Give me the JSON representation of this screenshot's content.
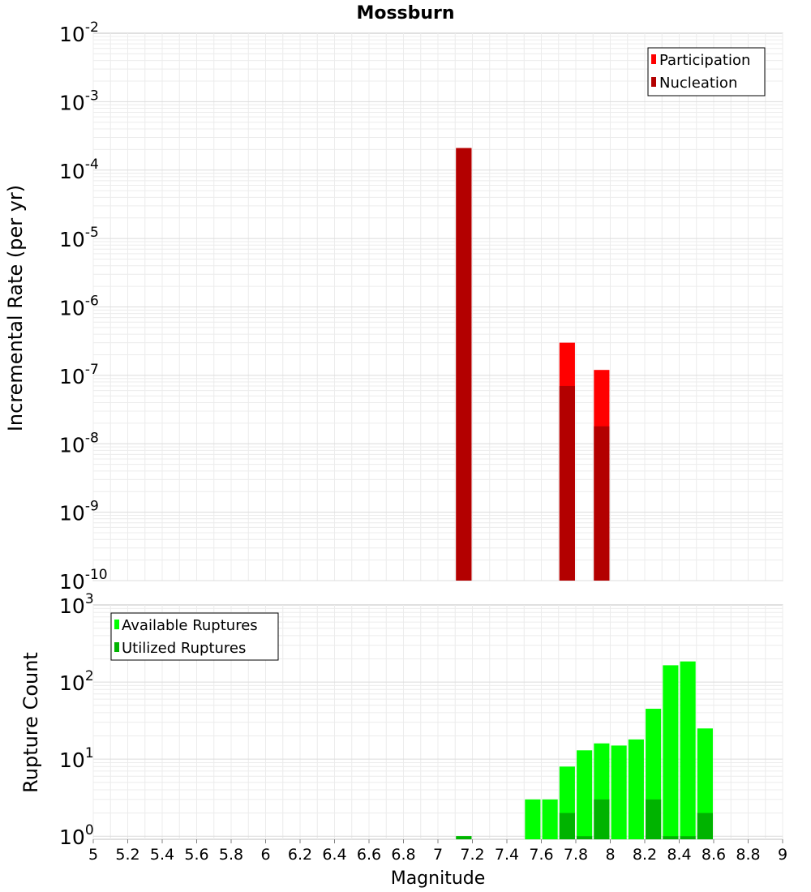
{
  "title": "Mossburn",
  "x_axis": {
    "label": "Magnitude",
    "ticks": [
      "5",
      "5.2",
      "5.4",
      "5.6",
      "5.8",
      "6",
      "6.2",
      "6.4",
      "6.6",
      "6.8",
      "7",
      "7.2",
      "7.4",
      "7.6",
      "7.8",
      "8",
      "8.2",
      "8.4",
      "8.6",
      "8.8",
      "9"
    ]
  },
  "chart_data": [
    {
      "type": "bar",
      "scale": "log",
      "title": "Mossburn",
      "ylabel": "Incremental Rate (per yr)",
      "xlabel": "",
      "xlim": [
        5,
        9
      ],
      "ylim_exponents": [
        -10,
        -2
      ],
      "y_ticks": [
        {
          "base": "10",
          "exp": "-2"
        },
        {
          "base": "10",
          "exp": "-3"
        },
        {
          "base": "10",
          "exp": "-4"
        },
        {
          "base": "10",
          "exp": "-5"
        },
        {
          "base": "10",
          "exp": "-6"
        },
        {
          "base": "10",
          "exp": "-7"
        },
        {
          "base": "10",
          "exp": "-8"
        },
        {
          "base": "10",
          "exp": "-9"
        },
        {
          "base": "10",
          "exp": "-10"
        }
      ],
      "bar_width": 0.09,
      "grid": true,
      "legend_position": "top-right",
      "series": [
        {
          "name": "Participation",
          "color": "#ff0000",
          "x": [
            7.15,
            7.75,
            7.95
          ],
          "values": [
            0.00021,
            3e-07,
            1.2e-07
          ]
        },
        {
          "name": "Nucleation",
          "color": "#b30000",
          "x": [
            7.15,
            7.75,
            7.95
          ],
          "values": [
            0.00021,
            7e-08,
            1.8e-08
          ]
        }
      ]
    },
    {
      "type": "bar",
      "scale": "log",
      "ylabel": "Rupture Count",
      "xlabel": "Magnitude",
      "xlim": [
        5,
        9
      ],
      "ylim_exponents": [
        -0.04,
        3
      ],
      "y_ticks": [
        {
          "base": "10",
          "exp": "3"
        },
        {
          "base": "10",
          "exp": "2"
        },
        {
          "base": "10",
          "exp": "1"
        },
        {
          "base": "10",
          "exp": "0"
        }
      ],
      "bar_width": 0.09,
      "grid": true,
      "legend_position": "top-left",
      "series": [
        {
          "name": "Available Ruptures",
          "color": "#00ff00",
          "x": [
            7.15,
            7.55,
            7.65,
            7.75,
            7.85,
            7.95,
            8.05,
            8.15,
            8.25,
            8.35,
            8.45,
            8.55
          ],
          "values": [
            1,
            3,
            3,
            8,
            13,
            16,
            15,
            18,
            45,
            165,
            185,
            25
          ]
        },
        {
          "name": "Utilized Ruptures",
          "color": "#00b300",
          "x": [
            7.15,
            7.75,
            7.85,
            7.95,
            8.25,
            8.35,
            8.45,
            8.55
          ],
          "values": [
            1,
            2,
            1,
            3,
            3,
            1,
            1,
            2
          ]
        }
      ]
    }
  ]
}
